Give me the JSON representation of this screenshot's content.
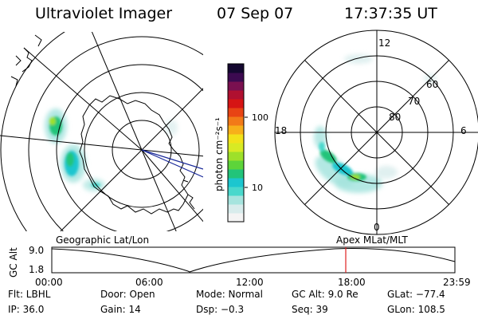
{
  "header": {
    "instrument": "Ultraviolet Imager",
    "date": "07 Sep 07",
    "time": "17:37:35 UT"
  },
  "colorbar": {
    "unit_label": "photon cm⁻²s⁻¹",
    "tick_100": "100",
    "tick_10": "10",
    "colors": [
      "#f4f4f4",
      "#d8ecec",
      "#a6e4de",
      "#49d8cc",
      "#1cc6cf",
      "#22c47a",
      "#5dd43a",
      "#9ee02a",
      "#d8ea24",
      "#f2e21a",
      "#f7b01a",
      "#f27a18",
      "#e84414",
      "#d61414",
      "#b01030",
      "#7a1050",
      "#3c0a50",
      "#140830"
    ]
  },
  "left_panel": {
    "title": "Geographic Lat/Lon"
  },
  "right_panel": {
    "title": "Apex MLat/MLT",
    "mlt_labels": {
      "top": "12",
      "left": "18",
      "right": "6",
      "bottom": "0"
    },
    "lat_labels": [
      "60",
      "70",
      "80"
    ]
  },
  "altitude_plot": {
    "axis_label": "GC Alt",
    "y_ticks": [
      "9.0",
      "1.8"
    ],
    "x_ticks": [
      "00:00",
      "06:00",
      "12:00",
      "18:00",
      "23:59"
    ],
    "marker_color": "#e02020"
  },
  "status": {
    "flt": "Flt: LBHL",
    "door": "Door: Open",
    "mode": "Mode: Normal",
    "gc_alt": "GC Alt: 9.0 Re",
    "glat": "GLat: −77.4",
    "ip": "IP: 36.0",
    "gain": "Gain: 14",
    "dsp": "Dsp:  −0.3",
    "seq": "Seq: 39",
    "glon": "GLon: 108.5"
  }
}
